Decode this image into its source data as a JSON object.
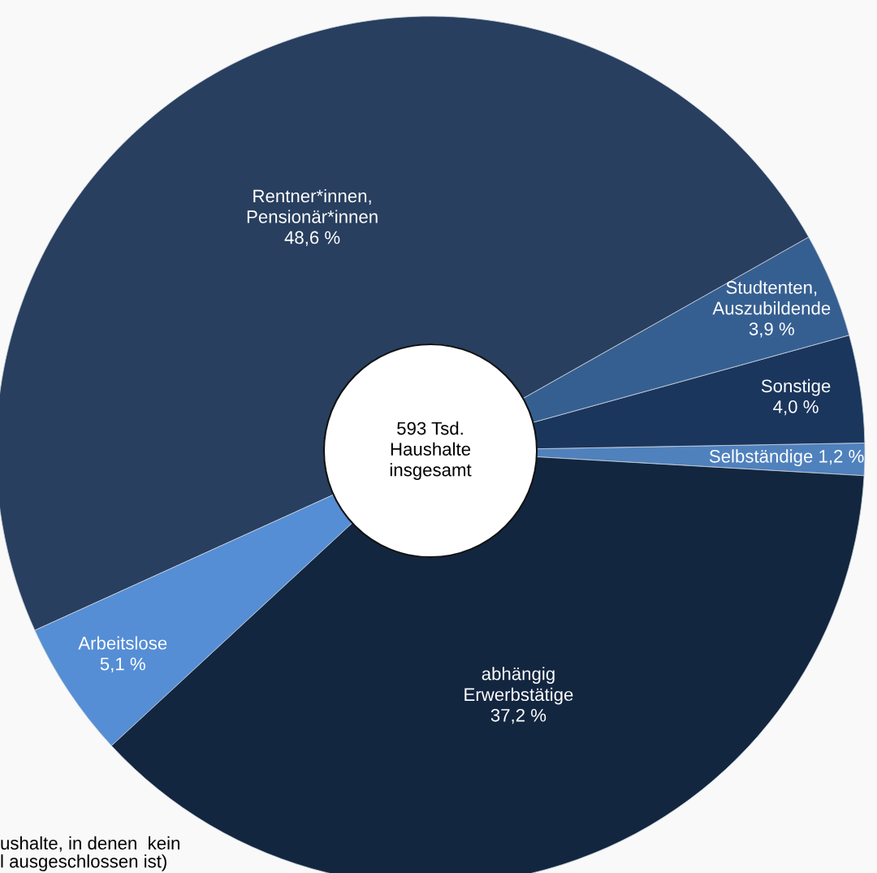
{
  "chart_data": {
    "type": "donut",
    "categories": [
      "Selbständige",
      "Sonstige",
      "Studtenten,\nAuszubildende",
      "Rentner*innen,\nPensionär*innen",
      "Arbeitslose",
      "abhängig\nErwerbstätige"
    ],
    "values": [
      1.2,
      4.0,
      3.9,
      48.6,
      5.1,
      37.2
    ],
    "value_labels": [
      "1,2 %",
      "4,0 %",
      "3,9 %",
      "48,6 %",
      "5,1 %",
      "37,2 %"
    ],
    "colors": [
      "#4f81bd",
      "#1b365d",
      "#365f91",
      "#283f5f",
      "#558ed5",
      "#132640"
    ],
    "annotations": [
      "593 Tsd.\nHaushalte\ninsgesamt",
      "ushalte, in denen  kein\nl ausgeschlossen ist)"
    ]
  }
}
